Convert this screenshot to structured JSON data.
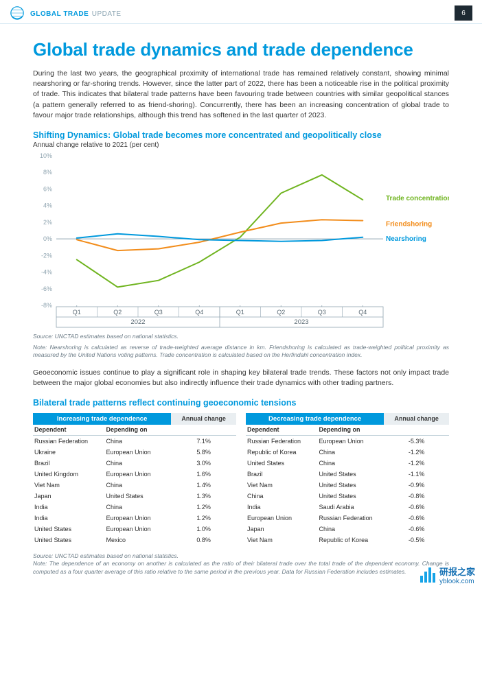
{
  "header": {
    "brand_strong": "GLOBAL TRADE",
    "brand_light": "UPDATE",
    "page_number": "6"
  },
  "main": {
    "title": "Global trade dynamics and trade dependence",
    "intro": "During the last two years, the geographical proximity of international trade has remained relatively constant, showing minimal nearshoring or far-shoring trends. However, since the latter part of 2022, there has been a noticeable rise in the political proximity of trade. This indicates that bilateral trade patterns have been favouring trade between countries with similar geopolitical stances (a pattern generally referred to as friend-shoring). Concurrently, there has been an increasing concentration of global trade to favour major trade relationships, although this trend has softened in the last quarter of 2023."
  },
  "chart": {
    "title": "Shifting Dynamics: Global trade becomes more concentrated and geopolitically close",
    "subtitle": "Annual change relative to 2021 (per cent)",
    "type": "line",
    "x_categories": [
      "Q1",
      "Q2",
      "Q3",
      "Q4",
      "Q1",
      "Q2",
      "Q3",
      "Q4"
    ],
    "x_year_groups": [
      {
        "label": "2022",
        "span": 4
      },
      {
        "label": "2023",
        "span": 4
      }
    ],
    "ylim": [
      -8,
      10
    ],
    "ytick_step": 2,
    "y_ticks": [
      -8,
      -6,
      -4,
      -2,
      0,
      2,
      4,
      6,
      8,
      10
    ],
    "axis_color": "#8fa4b0",
    "grid_color": "#e3eef4",
    "axis_fontsize": 9,
    "background_color": "#ffffff",
    "zero_line_color": "#8fa4b0",
    "line_width": 2,
    "series": [
      {
        "name": "Trade concentration",
        "color": "#6fb41f",
        "values": [
          -2.5,
          -5.8,
          -5.0,
          -2.8,
          0.2,
          5.5,
          7.7,
          4.7
        ],
        "label_xy": [
          7.25,
          4.9
        ]
      },
      {
        "name": "Friendshoring",
        "color": "#f28c1a",
        "values": [
          -0.1,
          -1.4,
          -1.2,
          -0.4,
          0.8,
          1.9,
          2.3,
          2.2
        ],
        "label_xy": [
          7.25,
          1.8
        ]
      },
      {
        "name": "Nearshoring",
        "color": "#0099dd",
        "values": [
          0.1,
          0.6,
          0.3,
          -0.1,
          -0.2,
          -0.3,
          -0.2,
          0.2
        ],
        "label_xy": [
          7.25,
          0.0
        ]
      }
    ],
    "source": "Source: UNCTAD estimates based on national statistics.",
    "note": "Note: Nearshoring is calculated as reverse of trade-weighted average distance in km. Friendshoring is calculated as trade-weighted political proximity as measured by the United Nations voting patterns. Trade concentration is calculated based on the Herfindahl concentration index."
  },
  "mid_para": "Geoeconomic issues continue to play a significant role in shaping key bilateral trade trends. These factors not only impact trade between the major global economies but also indirectly influence their trade dynamics with other trading partners.",
  "tables": {
    "title": "Bilateral trade patterns reflect continuing geoeconomic tensions",
    "left": {
      "banner": "Increasing trade dependence",
      "annual_label": "Annual change",
      "col_dep": "Dependent",
      "col_on": "Depending on",
      "rows": [
        {
          "dep": "Russian Federation",
          "on": "China",
          "chg": "7.1%"
        },
        {
          "dep": "Ukraine",
          "on": "European Union",
          "chg": "5.8%"
        },
        {
          "dep": "Brazil",
          "on": "China",
          "chg": "3.0%"
        },
        {
          "dep": "United Kingdom",
          "on": "European Union",
          "chg": "1.6%"
        },
        {
          "dep": "Viet Nam",
          "on": "China",
          "chg": "1.4%"
        },
        {
          "dep": "Japan",
          "on": "United States",
          "chg": "1.3%"
        },
        {
          "dep": "India",
          "on": "China",
          "chg": "1.2%"
        },
        {
          "dep": "India",
          "on": "European Union",
          "chg": "1.2%"
        },
        {
          "dep": "United States",
          "on": "European Union",
          "chg": "1.0%"
        },
        {
          "dep": "United States",
          "on": "Mexico",
          "chg": "0.8%"
        }
      ]
    },
    "right": {
      "banner": "Decreasing trade dependence",
      "annual_label": "Annual change",
      "col_dep": "Dependent",
      "col_on": "Depending on",
      "rows": [
        {
          "dep": "Russian Federation",
          "on": "European Union",
          "chg": "-5.3%"
        },
        {
          "dep": "Republic of Korea",
          "on": "China",
          "chg": "-1.2%"
        },
        {
          "dep": "United States",
          "on": "China",
          "chg": "-1.2%"
        },
        {
          "dep": "Brazil",
          "on": "United States",
          "chg": "-1.1%"
        },
        {
          "dep": "Viet Nam",
          "on": "United States",
          "chg": "-0.9%"
        },
        {
          "dep": "China",
          "on": "United States",
          "chg": "-0.8%"
        },
        {
          "dep": "India",
          "on": "Saudi Arabia",
          "chg": "-0.6%"
        },
        {
          "dep": "European Union",
          "on": "Russian Federation",
          "chg": "-0.6%"
        },
        {
          "dep": "Japan",
          "on": "China",
          "chg": "-0.6%"
        },
        {
          "dep": "Viet Nam",
          "on": "Republic of Korea",
          "chg": "-0.5%"
        }
      ]
    },
    "source": "Source: UNCTAD estimates based on national statistics.",
    "note": "Note: The dependence of an economy on another is calculated as the ratio of their bilateral trade over the total trade of the dependent economy. Change is computed as a four quarter average of this ratio relative to the same period in the previous year. Data for Russian Federation includes estimates."
  },
  "watermark": {
    "main": "研报之家",
    "url": "yblook.com"
  },
  "colors": {
    "brand_blue": "#0099dd",
    "text": "#3a3a3a",
    "muted": "#6b7b86",
    "banner_blue": "#0099dd",
    "th_grey": "#e9eef1",
    "page_badge_bg": "#1e2a33"
  }
}
